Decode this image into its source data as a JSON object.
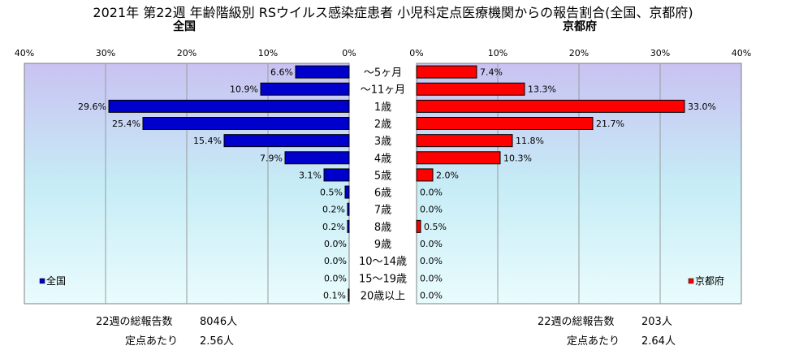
{
  "title": "2021年 第22週 年齢階級別 RSウイルス感染症患者 小児科定点医療機関からの報告割合(全国、京都府)",
  "panels": {
    "left_title": "全国",
    "right_title": "京都府"
  },
  "chart_data": [
    {
      "type": "bar",
      "orientation": "horizontal",
      "direction": "right-to-left",
      "title": "全国",
      "categories": [
        "〜5ヶ月",
        "〜11ヶ月",
        "1歳",
        "2歳",
        "3歳",
        "4歳",
        "5歳",
        "6歳",
        "7歳",
        "8歳",
        "9歳",
        "10〜14歳",
        "15〜19歳",
        "20歳以上"
      ],
      "series": [
        {
          "name": "全国",
          "color": "#0000cc",
          "values": [
            6.6,
            10.9,
            29.6,
            25.4,
            15.4,
            7.9,
            3.1,
            0.5,
            0.2,
            0.2,
            0.0,
            0.0,
            0.0,
            0.1
          ],
          "labels": [
            "6.6%",
            "10.9%",
            "29.6%",
            "25.4%",
            "15.4%",
            "7.9%",
            "3.1%",
            "0.5%",
            "0.2%",
            "0.2%",
            "0.0%",
            "0.0%",
            "0.0%",
            "0.1%"
          ]
        }
      ],
      "xlim": [
        0,
        40
      ],
      "ticks": [
        "40%",
        "30%",
        "20%",
        "10%",
        "0%"
      ],
      "legend": "bottom-left",
      "grid": true
    },
    {
      "type": "bar",
      "orientation": "horizontal",
      "direction": "left-to-right",
      "title": "京都府",
      "categories": [
        "〜5ヶ月",
        "〜11ヶ月",
        "1歳",
        "2歳",
        "3歳",
        "4歳",
        "5歳",
        "6歳",
        "7歳",
        "8歳",
        "9歳",
        "10〜14歳",
        "15〜19歳",
        "20歳以上"
      ],
      "series": [
        {
          "name": "京都府",
          "color": "#ff0000",
          "values": [
            7.4,
            13.3,
            33.0,
            21.7,
            11.8,
            10.3,
            2.0,
            0.0,
            0.0,
            0.5,
            0.0,
            0.0,
            0.0,
            0.0
          ],
          "labels": [
            "7.4%",
            "13.3%",
            "33.0%",
            "21.7%",
            "11.8%",
            "10.3%",
            "2.0%",
            "0.0%",
            "0.0%",
            "0.5%",
            "0.0%",
            "0.0%",
            "0.0%",
            "0.0%"
          ]
        }
      ],
      "xlim": [
        0,
        40
      ],
      "ticks": [
        "0%",
        "10%",
        "20%",
        "30%",
        "40%"
      ],
      "legend": "bottom-right",
      "grid": true
    }
  ],
  "stats": {
    "left": {
      "total_label": "22週の総報告数",
      "total_value": "8046人",
      "per_label": "定点あたり",
      "per_value": "2.56人"
    },
    "right": {
      "total_label": "22週の総報告数",
      "total_value": "203人",
      "per_label": "定点あたり",
      "per_value": "2.64人"
    }
  }
}
